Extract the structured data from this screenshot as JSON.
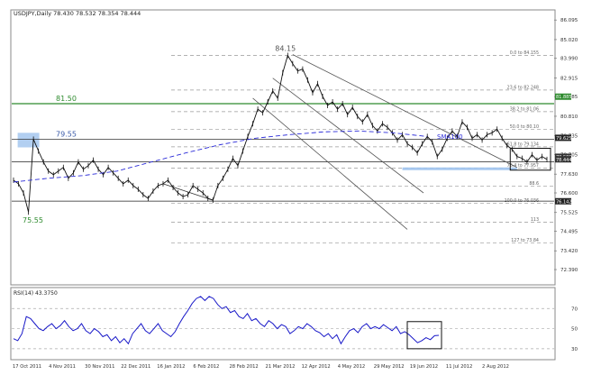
{
  "chart_data": {
    "type": "line",
    "title": "USDJPY,Daily 78.430 78.532 78.354 78.444",
    "symbol": "USDJPY",
    "timeframe": "Daily",
    "ohlc_last": {
      "open": 78.43,
      "high": 78.532,
      "low": 78.354,
      "close": 78.444
    },
    "x_ticks": [
      "17 Oct 2011",
      "4 Nov 2011",
      "30 Nov 2011",
      "22 Dec 2011",
      "16 Jan 2012",
      "6 Feb 2012",
      "28 Feb 2012",
      "21 Mar 2012",
      "12 Apr 2012",
      "4 May 2012",
      "29 May 2012",
      "19 Jun 2012",
      "11 Jul 2012",
      "2 Aug 2012"
    ],
    "y_ticks": [
      "86.095",
      "85.020",
      "83.990",
      "82.915",
      "81.885",
      "80.810",
      "79.735",
      "78.705",
      "77.630",
      "76.600",
      "75.525",
      "74.495",
      "73.420",
      "72.390"
    ],
    "ylim": [
      71.6,
      86.6
    ],
    "price": [
      77.3,
      77.1,
      76.6,
      75.55,
      79.55,
      78.9,
      78.3,
      77.8,
      77.6,
      77.8,
      78.0,
      77.4,
      77.7,
      78.3,
      77.9,
      78.1,
      78.4,
      77.9,
      77.6,
      78.0,
      77.7,
      77.4,
      77.1,
      77.3,
      77.0,
      76.8,
      76.5,
      76.3,
      76.7,
      77.0,
      77.1,
      77.3,
      76.9,
      76.6,
      76.4,
      76.5,
      77.0,
      76.8,
      76.6,
      76.3,
      76.2,
      77.0,
      77.4,
      77.9,
      78.5,
      78.1,
      78.9,
      79.7,
      80.4,
      81.2,
      81.0,
      81.6,
      82.2,
      81.8,
      83.2,
      84.15,
      83.7,
      83.3,
      83.4,
      82.8,
      82.1,
      82.6,
      81.9,
      81.4,
      81.6,
      81.2,
      81.5,
      80.9,
      81.3,
      80.8,
      80.5,
      80.9,
      80.3,
      80.0,
      80.4,
      80.2,
      79.9,
      79.5,
      79.8,
      79.3,
      79.1,
      78.8,
      79.3,
      79.7,
      79.4,
      78.6,
      79.0,
      79.6,
      80.0,
      79.7,
      80.5,
      80.2,
      79.6,
      79.8,
      79.5,
      79.8,
      79.9,
      80.1,
      79.6,
      79.2,
      79.0,
      78.6,
      78.5,
      78.3,
      78.7,
      78.4,
      78.6,
      78.44
    ],
    "sma": {
      "name": "SMA100",
      "values": [
        77.2,
        77.4,
        77.55,
        77.8,
        78.3,
        78.8,
        79.25,
        79.6,
        79.8,
        79.95,
        80.0,
        79.9,
        79.7
      ]
    },
    "levels": [
      {
        "label": "84.15",
        "value": 84.15
      },
      {
        "label": "81.50",
        "value": 81.5
      },
      {
        "label": "79.55",
        "value": 79.55
      },
      {
        "label": "75.55",
        "value": 75.55
      }
    ],
    "fibonacci": [
      {
        "label": "0.0 to 84.155",
        "value": 84.15
      },
      {
        "label": "23.6 to 82.248",
        "value": 82.25
      },
      {
        "label": "38.2 to 81.06",
        "value": 81.06
      },
      {
        "label": "50.0 to 80.10",
        "value": 80.1
      },
      {
        "label": "61.8 to 79.134",
        "value": 79.13
      },
      {
        "label": "76.4 to 77.957",
        "value": 77.96
      },
      {
        "label": "88.6",
        "value": 76.98
      },
      {
        "label": "100.0 to 76.036",
        "value": 76.04
      },
      {
        "label": "113",
        "value": 74.99
      },
      {
        "label": "127 to 73.84",
        "value": 73.85
      }
    ],
    "price_tags": [
      {
        "label": "81.885",
        "value": 81.885,
        "color": "#2e8b2e"
      },
      {
        "label": "79.625",
        "value": 79.625,
        "color": "#222222"
      },
      {
        "label": "78.585",
        "value": 78.585,
        "color": "#333333"
      },
      {
        "label": "78.444",
        "value": 78.444,
        "color": "#333333"
      },
      {
        "label": "76.142",
        "value": 76.142,
        "color": "#222222"
      }
    ],
    "rsi": {
      "label": "RSI(14) 43.3750",
      "ylim": [
        20,
        90
      ],
      "ticks": [
        "70",
        "50",
        "30"
      ],
      "values": [
        40,
        38,
        45,
        62,
        60,
        55,
        50,
        48,
        52,
        55,
        50,
        53,
        58,
        52,
        48,
        50,
        55,
        48,
        45,
        50,
        47,
        42,
        44,
        38,
        42,
        36,
        40,
        35,
        45,
        50,
        55,
        48,
        45,
        50,
        55,
        48,
        45,
        42,
        47,
        55,
        62,
        68,
        75,
        80,
        82,
        78,
        82,
        80,
        74,
        70,
        72,
        66,
        68,
        62,
        60,
        65,
        58,
        60,
        55,
        52,
        58,
        55,
        50,
        54,
        52,
        45,
        48,
        52,
        50,
        55,
        52,
        48,
        46,
        42,
        45,
        40,
        44,
        35,
        42,
        48,
        50,
        46,
        52,
        55,
        50,
        52,
        50,
        54,
        51,
        48,
        52,
        45,
        47,
        44,
        40,
        36,
        38,
        41,
        39,
        43,
        43.375
      ]
    },
    "colors": {
      "price": "#111111",
      "sma": "#2a2ad8",
      "rsi": "#1818c8",
      "support_green": "#2e8b2e",
      "zone_blue": "#9fc3ee",
      "channel": "#555555"
    }
  }
}
